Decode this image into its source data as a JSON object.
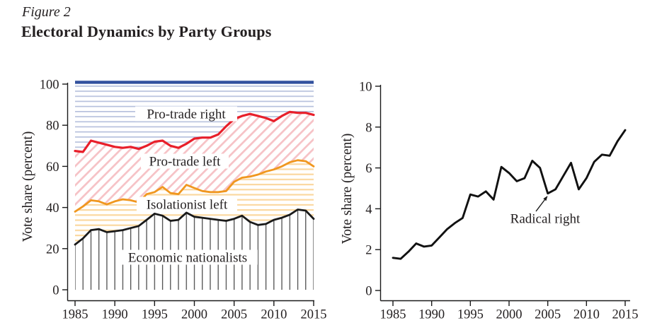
{
  "figure": {
    "label": "Figure 2",
    "title": "Electoral Dynamics by Party Groups"
  },
  "colors": {
    "background": "#ffffff",
    "axis": "#1a1a1a",
    "text": "#231f20"
  },
  "chart_data": [
    {
      "id": "party-groups",
      "type": "area",
      "title": "",
      "xlabel": "",
      "ylabel": "Vote share (percent)",
      "xlim": [
        1985,
        2015
      ],
      "ylim": [
        0,
        100
      ],
      "grid": false,
      "legend_position": "inside-region-labels",
      "x": [
        1985,
        1986,
        1987,
        1988,
        1989,
        1990,
        1991,
        1992,
        1993,
        1994,
        1995,
        1996,
        1997,
        1998,
        1999,
        2000,
        2001,
        2002,
        2003,
        2004,
        2005,
        2006,
        2007,
        2008,
        2009,
        2010,
        2011,
        2012,
        2013,
        2014,
        2015
      ],
      "xticks": [
        1985,
        1990,
        1995,
        2000,
        2005,
        2010,
        2015
      ],
      "yticks": [
        0,
        20,
        40,
        60,
        80,
        100
      ],
      "note": "values are cumulative upper boundaries; each named band lies between the previous series line and its own line",
      "series": [
        {
          "name": "Economic nationalists",
          "line_color": "#1a1a1a",
          "hatch": "vertical",
          "hatch_color": "#4f4f4f",
          "values": [
            22,
            25,
            29,
            29.5,
            28,
            28.5,
            29,
            30,
            31,
            34,
            37,
            36,
            33.5,
            34,
            37.5,
            35.5,
            35,
            34.5,
            34,
            33.5,
            34.5,
            36,
            33,
            31.5,
            32,
            34,
            35,
            36.5,
            39,
            38.5,
            34.5
          ]
        },
        {
          "name": "Isolationist left",
          "line_color": "#f0971f",
          "hatch": "horizontal",
          "hatch_color": "#fbd8a0",
          "values": [
            38,
            40.5,
            43.5,
            43,
            41.5,
            43,
            44,
            43.5,
            42.5,
            46.5,
            47.5,
            50,
            47,
            46.5,
            51,
            49.5,
            48,
            47.5,
            47.5,
            48,
            52.5,
            54.5,
            55,
            56,
            57.5,
            58.5,
            60,
            62,
            63,
            62.5,
            60
          ]
        },
        {
          "name": "Pro-trade left",
          "line_color": "#e81f2a",
          "hatch": "diagonal",
          "hatch_color": "#f6c2c6",
          "values": [
            67.5,
            67,
            72.5,
            71.5,
            70.5,
            69.5,
            69,
            69.5,
            68.5,
            70,
            72,
            72.5,
            70,
            69,
            71,
            73.5,
            74,
            74,
            75.5,
            79.5,
            83,
            84.5,
            85.5,
            84.5,
            83.5,
            82,
            84.5,
            86.5,
            86,
            86,
            85
          ]
        },
        {
          "name": "Pro-trade right",
          "line_color": "#32519e",
          "hatch": "horizontal",
          "hatch_color": "#b7c1dd",
          "values": [
            100,
            100,
            100,
            100,
            100,
            100,
            100,
            100,
            100,
            100,
            100,
            100,
            100,
            100,
            100,
            100,
            100,
            100,
            100,
            100,
            100,
            100,
            100,
            100,
            100,
            100,
            100,
            100,
            100,
            100,
            100
          ]
        }
      ]
    },
    {
      "id": "radical-right",
      "type": "line",
      "title": "",
      "xlabel": "",
      "ylabel": "Vote share (percent)",
      "xlim": [
        1985,
        2015
      ],
      "ylim": [
        0,
        10
      ],
      "grid": false,
      "x": [
        1985,
        1986,
        1987,
        1988,
        1989,
        1990,
        1991,
        1992,
        1993,
        1994,
        1995,
        1996,
        1997,
        1998,
        1999,
        2000,
        2001,
        2002,
        2003,
        2004,
        2005,
        2006,
        2007,
        2008,
        2009,
        2010,
        2011,
        2012,
        2013,
        2014,
        2015
      ],
      "xticks": [
        1985,
        1990,
        1995,
        2000,
        2005,
        2010,
        2015
      ],
      "yticks": [
        0,
        2,
        4,
        6,
        8,
        10
      ],
      "series": [
        {
          "name": "Radical right",
          "line_color": "#111111",
          "values": [
            1.6,
            1.55,
            1.9,
            2.3,
            2.15,
            2.2,
            2.6,
            3.0,
            3.3,
            3.55,
            4.7,
            4.6,
            4.85,
            4.45,
            6.05,
            5.75,
            5.35,
            5.5,
            6.35,
            6.0,
            4.75,
            4.95,
            5.6,
            6.25,
            4.95,
            5.5,
            6.3,
            6.65,
            6.6,
            7.3,
            7.85
          ]
        }
      ],
      "annotation": {
        "text": "Radical right",
        "points_to_year": 2005
      }
    }
  ]
}
